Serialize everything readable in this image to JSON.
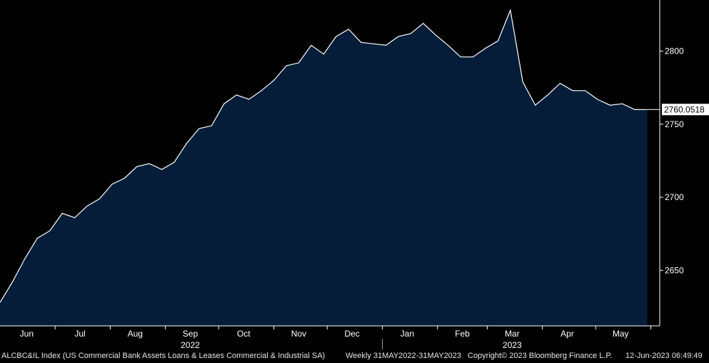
{
  "chart_data": {
    "type": "area",
    "colors": {
      "fill": "#051d38",
      "line": "#ffffff",
      "background": "#000000",
      "axis": "#ffffff"
    },
    "ylim": [
      2612,
      2835
    ],
    "y_ticks": [
      2650,
      2700,
      2750,
      2800
    ],
    "y_tick_labels": [
      "2650",
      "2700",
      "2750",
      "2800"
    ],
    "grid": false,
    "axis_side": "right",
    "months": [
      {
        "label": "Jun",
        "date": "2022-06-15"
      },
      {
        "label": "Jul",
        "date": "2022-07-15"
      },
      {
        "label": "Aug",
        "date": "2022-08-15"
      },
      {
        "label": "Sep",
        "date": "2022-09-15"
      },
      {
        "label": "Oct",
        "date": "2022-10-15"
      },
      {
        "label": "Nov",
        "date": "2022-11-15"
      },
      {
        "label": "Dec",
        "date": "2022-12-15"
      },
      {
        "label": "Jan",
        "date": "2023-01-15"
      },
      {
        "label": "Feb",
        "date": "2023-02-15"
      },
      {
        "label": "Mar",
        "date": "2023-03-15"
      },
      {
        "label": "Apr",
        "date": "2023-04-15"
      },
      {
        "label": "May",
        "date": "2023-05-15"
      }
    ],
    "month_dividers": [
      "2022-07-01",
      "2022-08-01",
      "2022-09-01",
      "2022-10-01",
      "2022-11-01",
      "2022-12-01",
      "2023-01-01",
      "2023-02-01",
      "2023-03-01",
      "2023-04-01",
      "2023-05-01",
      "2023-06-01"
    ],
    "years": [
      {
        "label": "2022",
        "date": "2022-09-15"
      },
      {
        "label": "2023",
        "date": "2023-03-15"
      }
    ],
    "year_divider": "2023-01-01",
    "x_range": [
      "2022-05-31",
      "2023-06-06"
    ],
    "dates": [
      "2022-05-31",
      "2022-06-07",
      "2022-06-14",
      "2022-06-21",
      "2022-06-28",
      "2022-07-05",
      "2022-07-12",
      "2022-07-19",
      "2022-07-26",
      "2022-08-02",
      "2022-08-09",
      "2022-08-16",
      "2022-08-23",
      "2022-08-30",
      "2022-09-06",
      "2022-09-13",
      "2022-09-20",
      "2022-09-27",
      "2022-10-04",
      "2022-10-11",
      "2022-10-18",
      "2022-10-25",
      "2022-11-01",
      "2022-11-08",
      "2022-11-15",
      "2022-11-22",
      "2022-11-29",
      "2022-12-06",
      "2022-12-13",
      "2022-12-20",
      "2022-12-27",
      "2023-01-03",
      "2023-01-10",
      "2023-01-17",
      "2023-01-24",
      "2023-01-31",
      "2023-02-07",
      "2023-02-14",
      "2023-02-21",
      "2023-02-28",
      "2023-03-07",
      "2023-03-14",
      "2023-03-21",
      "2023-03-28",
      "2023-04-04",
      "2023-04-11",
      "2023-04-18",
      "2023-04-25",
      "2023-05-02",
      "2023-05-09",
      "2023-05-16",
      "2023-05-23",
      "2023-05-30"
    ],
    "values": [
      2628,
      2642,
      2658,
      2672,
      2677,
      2689,
      2686,
      2694,
      2699,
      2709,
      2713,
      2721,
      2723,
      2719,
      2724,
      2737,
      2747,
      2749,
      2764,
      2770,
      2767,
      2773,
      2780,
      2790,
      2792,
      2804,
      2798,
      2810,
      2815,
      2806,
      2805,
      2804,
      2810,
      2812,
      2819,
      2811,
      2804,
      2796,
      2796,
      2802,
      2807,
      2828,
      2779,
      2763,
      2770,
      2778,
      2773,
      2773,
      2767,
      2763,
      2764,
      2760,
      2760.0518
    ],
    "last_value_label": "2760.0518"
  },
  "footer": {
    "index_desc": "ALCBC&IL Index (US Commercial Bank Assets Loans & Leases Commercial & Industrial SA)",
    "period": "Weekly 31MAY2022-31MAY2023",
    "copyright": "Copyright© 2023 Bloomberg Finance L.P.",
    "timestamp": "12-Jun-2023 06:49:49"
  }
}
